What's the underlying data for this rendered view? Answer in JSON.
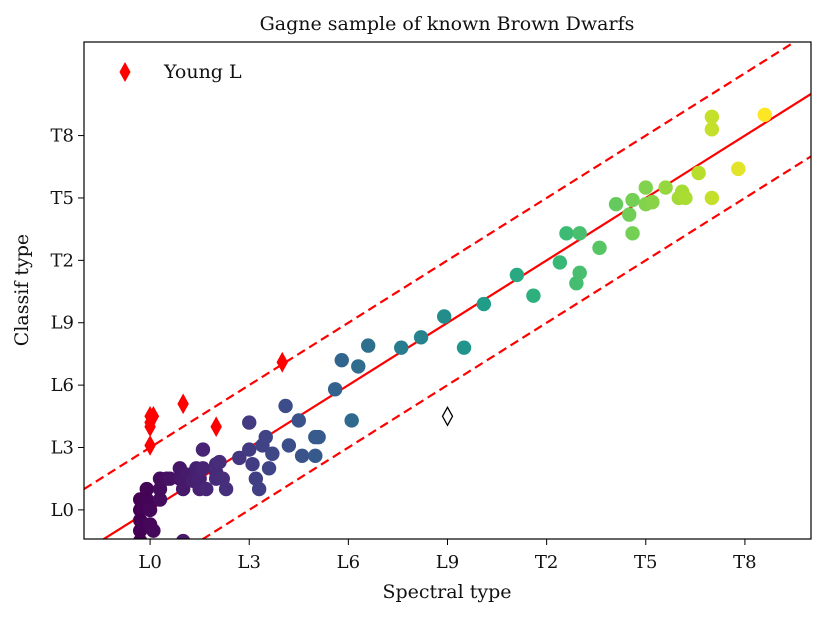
{
  "chart_data": {
    "type": "scatter",
    "title": "Gagne sample of known Brown Dwarfs",
    "xlabel": "Spectral type",
    "ylabel": "Classif type",
    "xlim": [
      -2,
      20
    ],
    "ylim": [
      -1.4,
      22.5
    ],
    "x_ticks": [
      {
        "value": 0,
        "label": "L0"
      },
      {
        "value": 3,
        "label": "L3"
      },
      {
        "value": 6,
        "label": "L6"
      },
      {
        "value": 9,
        "label": "L9"
      },
      {
        "value": 12,
        "label": "T2"
      },
      {
        "value": 15,
        "label": "T5"
      },
      {
        "value": 18,
        "label": "T8"
      }
    ],
    "y_ticks": [
      {
        "value": 0,
        "label": "L0"
      },
      {
        "value": 3,
        "label": "L3"
      },
      {
        "value": 6,
        "label": "L6"
      },
      {
        "value": 9,
        "label": "L9"
      },
      {
        "value": 12,
        "label": "T2"
      },
      {
        "value": 15,
        "label": "T5"
      },
      {
        "value": 18,
        "label": "T8"
      }
    ],
    "grid": false,
    "legend": {
      "position": "top-left",
      "entries": [
        "Young L"
      ]
    },
    "colormap": "viridis",
    "color_by": "x",
    "lines": [
      {
        "style": "solid",
        "color": "#ff0000",
        "intercept": 0
      },
      {
        "style": "dashed",
        "color": "#ff0000",
        "intercept": 3
      },
      {
        "style": "dashed",
        "color": "#ff0000",
        "intercept": -3
      }
    ],
    "series": [
      {
        "marker": "circle",
        "points": [
          [
            -0.3,
            -1.0
          ],
          [
            -0.3,
            -1.5
          ],
          [
            -0.3,
            -0.5
          ],
          [
            -0.3,
            0.0
          ],
          [
            -0.3,
            0.5
          ],
          [
            -0.2,
            0.1
          ],
          [
            -0.2,
            -0.7
          ],
          [
            0.0,
            0.3
          ],
          [
            -0.1,
            1.0
          ],
          [
            -0.1,
            0.5
          ],
          [
            0.0,
            -0.7
          ],
          [
            0.0,
            0.0
          ],
          [
            0.1,
            -1.0
          ],
          [
            0.3,
            1.0
          ],
          [
            0.3,
            1.5
          ],
          [
            0.3,
            0.5
          ],
          [
            0.5,
            1.5
          ],
          [
            0.6,
            1.5
          ],
          [
            0.9,
            2.0
          ],
          [
            0.9,
            1.5
          ],
          [
            1.0,
            1.5
          ],
          [
            1.0,
            1.0
          ],
          [
            1.0,
            -1.5
          ],
          [
            1.1,
            1.7
          ],
          [
            1.3,
            1.4
          ],
          [
            1.4,
            2.0
          ],
          [
            1.5,
            1.5
          ],
          [
            1.5,
            1.0
          ],
          [
            1.6,
            2.0
          ],
          [
            1.6,
            2.9
          ],
          [
            1.7,
            1.0
          ],
          [
            2.0,
            2.2
          ],
          [
            2.0,
            1.8
          ],
          [
            2.0,
            1.5
          ],
          [
            2.1,
            2.3
          ],
          [
            2.2,
            1.5
          ],
          [
            2.3,
            1.0
          ],
          [
            2.7,
            2.5
          ],
          [
            3.0,
            4.2
          ],
          [
            3.0,
            2.9
          ],
          [
            3.1,
            2.2
          ],
          [
            3.2,
            1.5
          ],
          [
            3.3,
            1.0
          ],
          [
            3.4,
            3.1
          ],
          [
            3.5,
            3.5
          ],
          [
            3.6,
            2.0
          ],
          [
            3.7,
            2.7
          ],
          [
            4.1,
            5.0
          ],
          [
            4.2,
            3.1
          ],
          [
            4.5,
            4.3
          ],
          [
            4.6,
            2.6
          ],
          [
            5.0,
            3.5
          ],
          [
            5.0,
            2.6
          ],
          [
            5.1,
            3.5
          ],
          [
            5.6,
            5.8
          ],
          [
            5.8,
            7.2
          ],
          [
            6.1,
            4.3
          ],
          [
            6.3,
            6.9
          ],
          [
            6.6,
            7.9
          ],
          [
            7.6,
            7.8
          ],
          [
            8.2,
            8.3
          ],
          [
            8.9,
            9.3
          ],
          [
            9.5,
            7.8
          ],
          [
            10.1,
            9.9
          ],
          [
            11.1,
            11.3
          ],
          [
            11.6,
            10.3
          ],
          [
            12.4,
            11.9
          ],
          [
            12.6,
            13.3
          ],
          [
            12.9,
            10.9
          ],
          [
            13.0,
            11.4
          ],
          [
            13.0,
            13.3
          ],
          [
            13.6,
            12.6
          ],
          [
            14.1,
            14.7
          ],
          [
            14.5,
            14.2
          ],
          [
            14.6,
            13.3
          ],
          [
            14.6,
            14.9
          ],
          [
            15.0,
            14.7
          ],
          [
            15.0,
            15.5
          ],
          [
            15.2,
            14.8
          ],
          [
            15.6,
            15.5
          ],
          [
            16.0,
            15.0
          ],
          [
            16.1,
            15.3
          ],
          [
            16.2,
            15.0
          ],
          [
            16.6,
            16.2
          ],
          [
            17.0,
            15.0
          ],
          [
            17.0,
            18.3
          ],
          [
            17.0,
            18.9
          ],
          [
            17.8,
            16.4
          ],
          [
            18.6,
            19.0
          ]
        ]
      },
      {
        "name": "Young L",
        "marker": "diamond",
        "color": "#ff0000",
        "points": [
          [
            0.0,
            4.5
          ],
          [
            0.0,
            4.2
          ],
          [
            0.0,
            4.0
          ],
          [
            0.1,
            4.5
          ],
          [
            0.0,
            3.1
          ],
          [
            1.0,
            5.1
          ],
          [
            2.0,
            4.0
          ],
          [
            4.0,
            7.1
          ]
        ]
      },
      {
        "marker": "diamond-open",
        "color": "#000000",
        "points": [
          [
            9.0,
            4.5
          ]
        ]
      }
    ]
  }
}
